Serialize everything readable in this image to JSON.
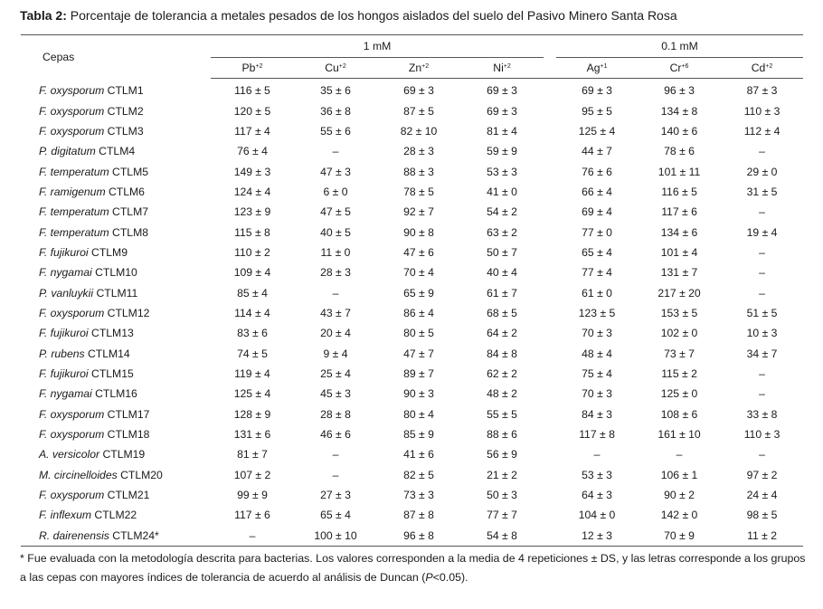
{
  "caption": {
    "label": "Tabla 2:",
    "text": " Porcentaje de tolerancia a metales pesados de los hongos aislados del suelo del Pasivo Minero Santa Rosa"
  },
  "header": {
    "strain_col": "Cepas",
    "group_1mM": "1 mM",
    "group_01mM": "0.1 mM",
    "metals": [
      {
        "sym": "Pb",
        "charge": "+2"
      },
      {
        "sym": "Cu",
        "charge": "+2"
      },
      {
        "sym": "Zn",
        "charge": "+2"
      },
      {
        "sym": "Ni",
        "charge": "+2"
      },
      {
        "sym": "Ag",
        "charge": "+1"
      },
      {
        "sym": "Cr",
        "charge": "+6"
      },
      {
        "sym": "Cd",
        "charge": "+2"
      }
    ]
  },
  "rows": [
    {
      "species": "F. oxysporum",
      "code": " CTLM1",
      "values": [
        "116 ± 5",
        "35 ± 6",
        "69 ± 3",
        "69 ± 3",
        "69 ± 3",
        "96 ± 3",
        "87 ± 3"
      ]
    },
    {
      "species": "F. oxysporum",
      "code": " CTLM2",
      "values": [
        "120 ± 5",
        "36 ± 8",
        "87 ± 5",
        "69 ± 3",
        "95 ± 5",
        "134 ± 8",
        "110 ± 3"
      ]
    },
    {
      "species": "F. oxysporum",
      "code": " CTLM3",
      "values": [
        "117 ± 4",
        "55 ± 6",
        "82 ± 10",
        "81 ± 4",
        "125 ± 4",
        "140 ± 6",
        "112 ± 4"
      ]
    },
    {
      "species": "P. digitatum",
      "code": " CTLM4",
      "values": [
        "76 ± 4",
        "–",
        "28 ± 3",
        "59 ± 9",
        "44 ± 7",
        "78 ± 6",
        "–"
      ]
    },
    {
      "species": "F. temperatum",
      "code": " CTLM5",
      "values": [
        "149 ± 3",
        "47 ± 3",
        "88 ± 3",
        "53 ± 3",
        "76 ± 6",
        "101 ± 11",
        "29 ± 0"
      ]
    },
    {
      "species": "F. ramigenum",
      "code": " CTLM6",
      "values": [
        "124 ± 4",
        "6 ± 0",
        "78 ± 5",
        "41 ± 0",
        "66 ± 4",
        "116 ± 5",
        "31 ± 5"
      ]
    },
    {
      "species": "F. temperatum",
      "code": " CTLM7",
      "values": [
        "123 ± 9",
        "47 ± 5",
        "92 ± 7",
        "54 ± 2",
        "69 ± 4",
        "117 ± 6",
        "–"
      ]
    },
    {
      "species": "F. temperatum",
      "code": " CTLM8",
      "values": [
        "115 ± 8",
        "40 ± 5",
        "90 ± 8",
        "63 ± 2",
        "77 ± 0",
        "134 ± 6",
        "19 ± 4"
      ]
    },
    {
      "species": "F. fujikuroi",
      "code": " CTLM9",
      "values": [
        "110 ± 2",
        "11 ± 0",
        "47 ± 6",
        "50 ± 7",
        "65 ± 4",
        "101 ± 4",
        "–"
      ]
    },
    {
      "species": "F. nygamai",
      "code": " CTLM10",
      "values": [
        "109 ± 4",
        "28 ± 3",
        "70 ± 4",
        "40 ± 4",
        "77 ± 4",
        "131 ± 7",
        "–"
      ]
    },
    {
      "species": "P. vanluykii",
      "code": " CTLM11",
      "values": [
        "85 ± 4",
        "–",
        "65 ± 9",
        "61 ± 7",
        "61 ± 0",
        "217 ± 20",
        "–"
      ]
    },
    {
      "species": "F. oxysporum",
      "code": " CTLM12",
      "values": [
        "114 ± 4",
        "43 ± 7",
        "86 ± 4",
        "68 ± 5",
        "123 ± 5",
        "153 ± 5",
        "51 ± 5"
      ]
    },
    {
      "species": "F. fujikuroi",
      "code": " CTLM13",
      "values": [
        "83 ± 6",
        "20 ± 4",
        "80 ± 5",
        "64 ± 2",
        "70 ± 3",
        "102 ± 0",
        "10 ± 3"
      ]
    },
    {
      "species": "P. rubens",
      "code": " CTLM14",
      "values": [
        "74 ± 5",
        "9 ± 4",
        "47 ± 7",
        "84 ± 8",
        "48 ± 4",
        "73 ± 7",
        "34 ± 7"
      ]
    },
    {
      "species": "F. fujikuroi",
      "code": " CTLM15",
      "values": [
        "119 ± 4",
        "25 ± 4",
        "89 ± 7",
        "62 ± 2",
        "75 ± 4",
        "115 ± 2",
        "–"
      ]
    },
    {
      "species": "F. nygamai",
      "code": " CTLM16",
      "values": [
        "125 ± 4",
        "45 ± 3",
        "90 ± 3",
        "48 ± 2",
        "70 ± 3",
        "125 ± 0",
        "–"
      ]
    },
    {
      "species": "F. oxysporum",
      "code": " CTLM17",
      "values": [
        "128 ± 9",
        "28 ± 8",
        "80 ± 4",
        "55 ± 5",
        "84 ± 3",
        "108 ± 6",
        "33 ± 8"
      ]
    },
    {
      "species": "F. oxysporum",
      "code": " CTLM18",
      "values": [
        "131 ± 6",
        "46 ± 6",
        "85 ± 9",
        "88 ± 6",
        "117 ± 8",
        "161 ± 10",
        "110 ± 3"
      ]
    },
    {
      "species": "A. versicolor",
      "code": " CTLM19",
      "values": [
        "81 ± 7",
        "–",
        "41 ± 6",
        "56 ± 9",
        "–",
        "–",
        "–"
      ]
    },
    {
      "species": "M. circinelloides",
      "code": " CTLM20",
      "values": [
        "107 ± 2",
        "–",
        "82 ± 5",
        "21 ± 2",
        "53 ± 3",
        "106 ± 1",
        "97 ± 2"
      ]
    },
    {
      "species": "F. oxysporum",
      "code": " CTLM21",
      "values": [
        "99 ± 9",
        "27 ± 3",
        "73 ± 3",
        "50 ± 3",
        "64 ± 3",
        "90 ± 2",
        "24 ± 4"
      ]
    },
    {
      "species": "F. inflexum",
      "code": " CTLM22",
      "values": [
        "117 ± 6",
        "65 ± 4",
        "87 ± 8",
        "77 ± 7",
        "104 ± 0",
        "142 ± 0",
        "98 ± 5"
      ]
    },
    {
      "species": "R. dairenensis",
      "code": " CTLM24*",
      "values": [
        "–",
        "100 ± 10",
        "96 ± 8",
        "54 ± 8",
        "12 ± 3",
        "70 ± 9",
        "11 ± 2"
      ]
    }
  ],
  "footnote": {
    "text_a": "* Fue evaluada con la metodología descrita para bacterias. Los valores corresponden a la media de 4 repeticiones ± DS, y las letras corresponde a los grupos a las cepas con mayores índices de tolerancia de acuerdo al análisis de Duncan (",
    "p_symbol": "P",
    "text_b": "<0.05)."
  }
}
